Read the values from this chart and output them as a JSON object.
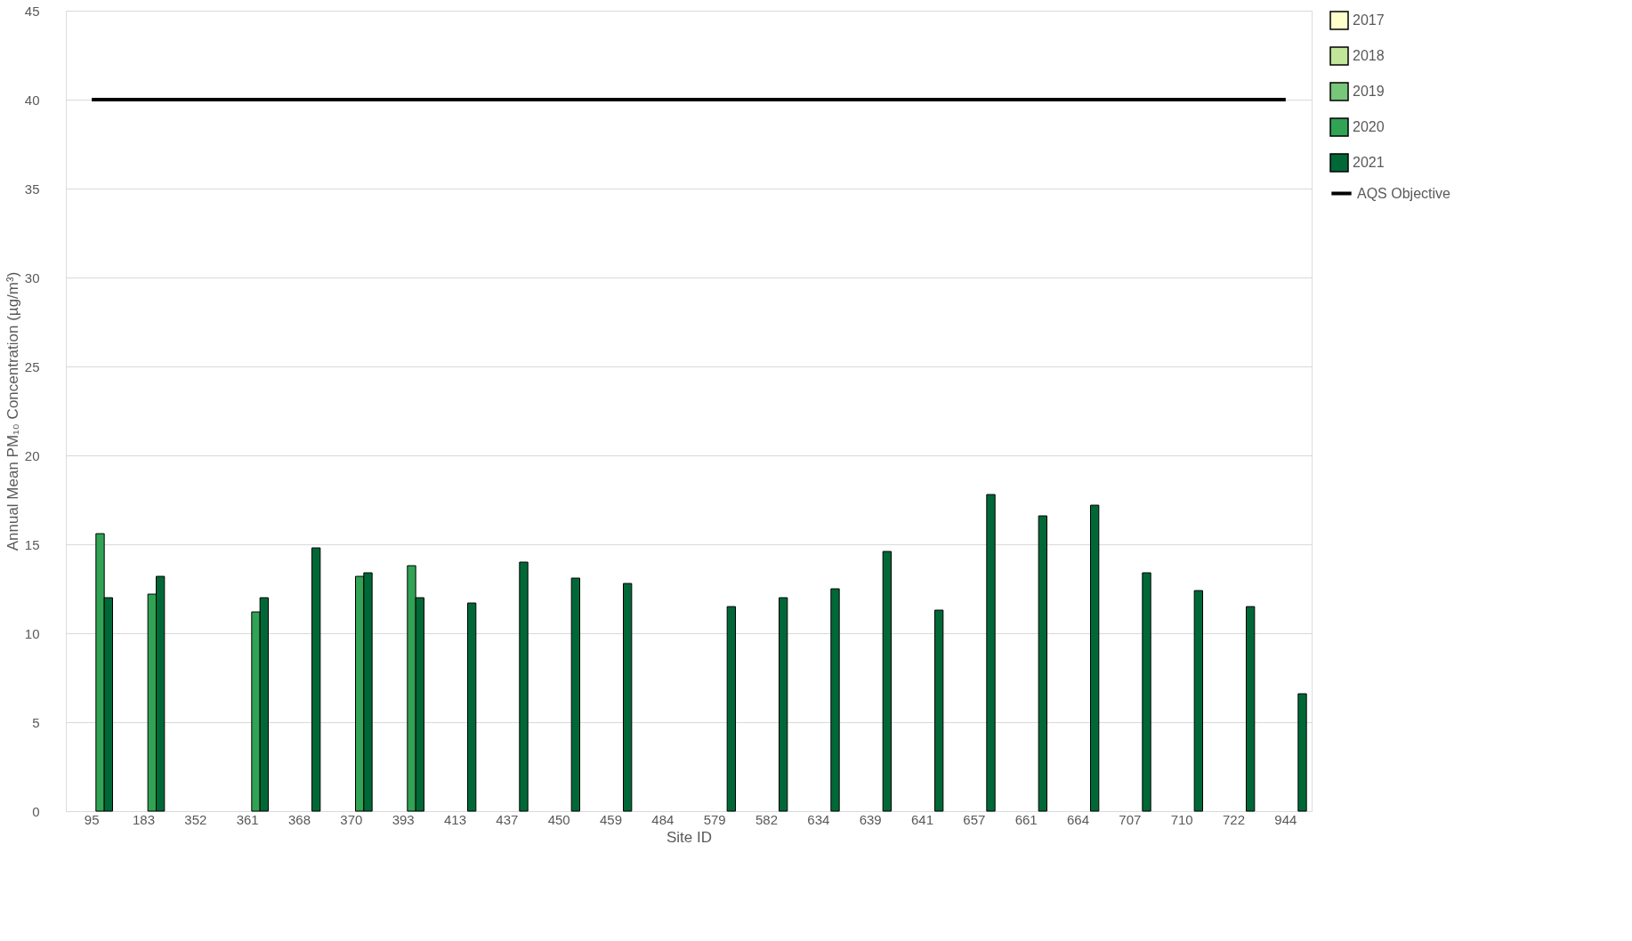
{
  "chart_data": {
    "type": "bar",
    "xlabel": "Site ID",
    "ylabel": "Annual Mean PM₁₀ Concentration (µg/m³)",
    "categories": [
      "95",
      "183",
      "352",
      "361",
      "368",
      "370",
      "393",
      "413",
      "437",
      "450",
      "459",
      "484",
      "579",
      "582",
      "634",
      "639",
      "641",
      "657",
      "661",
      "664",
      "707",
      "710",
      "722",
      "944"
    ],
    "series": [
      {
        "name": "2017",
        "color": "#ffffcc",
        "values": [
          null,
          null,
          null,
          null,
          null,
          null,
          null,
          null,
          null,
          null,
          null,
          null,
          null,
          null,
          null,
          null,
          null,
          null,
          null,
          null,
          null,
          null,
          null,
          null
        ]
      },
      {
        "name": "2018",
        "color": "#c2e699",
        "values": [
          null,
          null,
          null,
          null,
          null,
          null,
          null,
          null,
          null,
          null,
          null,
          null,
          null,
          null,
          null,
          null,
          null,
          null,
          null,
          null,
          null,
          null,
          null,
          null
        ]
      },
      {
        "name": "2019",
        "color": "#78c679",
        "values": [
          null,
          null,
          null,
          null,
          null,
          null,
          null,
          null,
          null,
          null,
          null,
          null,
          null,
          null,
          null,
          null,
          null,
          null,
          null,
          null,
          null,
          null,
          null,
          null
        ]
      },
      {
        "name": "2020",
        "color": "#31a354",
        "values": [
          15.6,
          12.2,
          null,
          11.2,
          null,
          13.2,
          13.8,
          null,
          null,
          null,
          null,
          null,
          null,
          null,
          null,
          null,
          null,
          null,
          null,
          null,
          null,
          null,
          null,
          null
        ]
      },
      {
        "name": "2021",
        "color": "#006837",
        "values": [
          12.0,
          13.2,
          null,
          12.0,
          14.8,
          13.4,
          12.0,
          11.7,
          14.0,
          13.1,
          12.8,
          null,
          11.5,
          12.0,
          12.5,
          14.6,
          11.3,
          17.8,
          16.6,
          17.2,
          13.4,
          12.4,
          11.5,
          6.6
        ]
      },
      {
        "name": "AQS Objective",
        "type": "line",
        "color": "#000000",
        "values": [
          40,
          40,
          40,
          40,
          40,
          40,
          40,
          40,
          40,
          40,
          40,
          40,
          40,
          40,
          40,
          40,
          40,
          40,
          40,
          40,
          40,
          40,
          40,
          40
        ]
      }
    ],
    "ylim": [
      0,
      45
    ],
    "yticks": [
      0,
      5,
      10,
      15,
      20,
      25,
      30,
      35,
      40,
      45
    ],
    "grid": "y",
    "legend": "right"
  }
}
